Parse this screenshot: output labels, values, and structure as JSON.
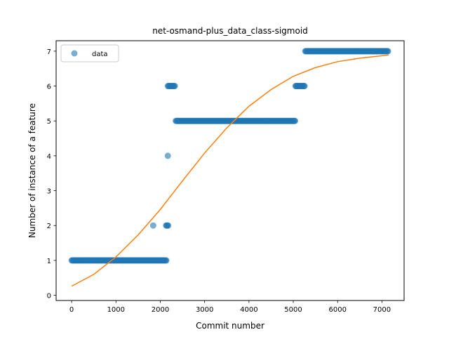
{
  "chart_data": {
    "type": "scatter",
    "title": "net-osmand-plus_data_class-sigmoid",
    "xlabel": "Commit number",
    "ylabel": "Number of instance of a feature",
    "xlim": [
      -350,
      7500
    ],
    "ylim": [
      -0.15,
      7.3
    ],
    "xticks": [
      0,
      1000,
      2000,
      3000,
      4000,
      5000,
      6000,
      7000
    ],
    "yticks": [
      0,
      1,
      2,
      3,
      4,
      5,
      6,
      7
    ],
    "grid": false,
    "legend": {
      "position": "top-left"
    },
    "colors": {
      "data": "#1f77b4",
      "fit": "#ff7f0e"
    },
    "series": [
      {
        "name": "data",
        "kind": "points",
        "runs": [
          {
            "x_start": 0,
            "x_end": 2140,
            "y": 1
          },
          {
            "x_start": 1840,
            "x_end": 1840,
            "y": 2
          },
          {
            "x_start": 2130,
            "x_end": 2190,
            "y": 2
          },
          {
            "x_start": 2170,
            "x_end": 2170,
            "y": 4
          },
          {
            "x_start": 2170,
            "x_end": 2340,
            "y": 6
          },
          {
            "x_start": 2350,
            "x_end": 5050,
            "y": 5
          },
          {
            "x_start": 5050,
            "x_end": 5260,
            "y": 6
          },
          {
            "x_start": 5270,
            "x_end": 7150,
            "y": 7
          }
        ]
      },
      {
        "kind": "line",
        "x": [
          0,
          500,
          1000,
          1500,
          2000,
          2500,
          3000,
          3500,
          4000,
          4500,
          5000,
          5500,
          6000,
          6500,
          7000,
          7150
        ],
        "y": [
          0.26,
          0.6,
          1.1,
          1.73,
          2.46,
          3.28,
          4.08,
          4.8,
          5.42,
          5.9,
          6.28,
          6.53,
          6.7,
          6.8,
          6.87,
          6.89
        ]
      }
    ]
  }
}
